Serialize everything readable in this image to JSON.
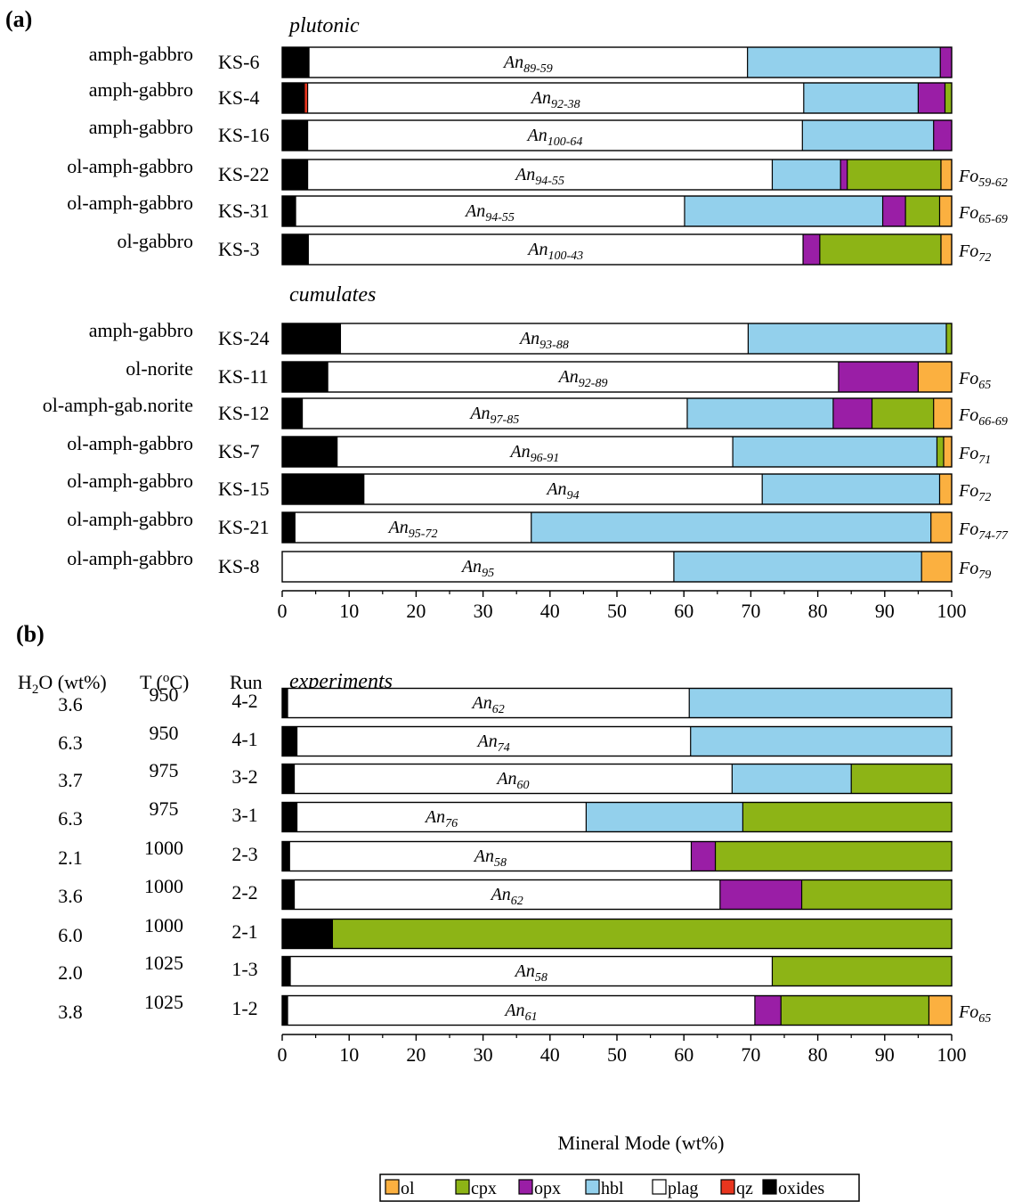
{
  "chart_data": [
    {
      "type": "bar",
      "stacked": true,
      "orientation": "horizontal",
      "panel": "(a)",
      "xlim": [
        0,
        100
      ],
      "xticks": [
        0,
        10,
        20,
        30,
        40,
        50,
        60,
        70,
        80,
        90,
        100
      ],
      "component_order": [
        "oxides",
        "qz",
        "plag",
        "hbl",
        "opx",
        "cpx",
        "ol"
      ],
      "groups": [
        {
          "label": "plutonic",
          "samples": [
            {
              "rock": "amph-gabbro",
              "sample": "KS-6",
              "an": "89-59",
              "fo": "",
              "values": {
                "oxides": 4,
                "qz": 0,
                "plag": 65.5,
                "hbl": 28.8,
                "opx": 1.7,
                "cpx": 0,
                "ol": 0
              }
            },
            {
              "rock": "amph-gabbro",
              "sample": "KS-4",
              "an": "92-38",
              "fo": "",
              "values": {
                "oxides": 3.3,
                "qz": 0.5,
                "plag": 74.1,
                "hbl": 17.1,
                "opx": 4,
                "cpx": 1,
                "ol": 0
              }
            },
            {
              "rock": "amph-gabbro",
              "sample": "KS-16",
              "an": "100-64",
              "fo": "",
              "values": {
                "oxides": 3.8,
                "qz": 0,
                "plag": 73.9,
                "hbl": 19.6,
                "opx": 2.7,
                "cpx": 0,
                "ol": 0
              }
            },
            {
              "rock": "ol-amph-gabbro",
              "sample": "KS-22",
              "an": "94-55",
              "fo": "59-62",
              "values": {
                "oxides": 3.8,
                "qz": 0,
                "plag": 69.4,
                "hbl": 10.2,
                "opx": 1,
                "cpx": 14,
                "ol": 1.6
              }
            },
            {
              "rock": "ol-amph-gabbro",
              "sample": "KS-31",
              "an": "94-55",
              "fo": "65-69",
              "values": {
                "oxides": 2,
                "qz": 0,
                "plag": 58.1,
                "hbl": 29.6,
                "opx": 3.4,
                "cpx": 5.1,
                "ol": 1.8
              }
            },
            {
              "rock": "ol-gabbro",
              "sample": "KS-3",
              "an": "100-43",
              "fo": "72",
              "values": {
                "oxides": 3.9,
                "qz": 0,
                "plag": 73.9,
                "hbl": 0,
                "opx": 2.5,
                "cpx": 18.1,
                "ol": 1.6
              }
            }
          ]
        },
        {
          "label": "cumulates",
          "samples": [
            {
              "rock": "amph-gabbro",
              "sample": "KS-24",
              "an": "93-88",
              "fo": "",
              "values": {
                "oxides": 8.7,
                "qz": 0,
                "plag": 60.9,
                "hbl": 29.6,
                "opx": 0,
                "cpx": 0.8,
                "ol": 0
              }
            },
            {
              "rock": "ol-norite",
              "sample": "KS-11",
              "an": "92-89",
              "fo": "65",
              "values": {
                "oxides": 6.8,
                "qz": 0,
                "plag": 76.3,
                "hbl": 0,
                "opx": 11.9,
                "cpx": 0,
                "ol": 5
              }
            },
            {
              "rock": "ol-amph-gab.norite",
              "sample": "KS-12",
              "an": "97-85",
              "fo": "66-69",
              "values": {
                "oxides": 3,
                "qz": 0,
                "plag": 57.5,
                "hbl": 21.8,
                "opx": 5.8,
                "cpx": 9.2,
                "ol": 2.7
              }
            },
            {
              "rock": "ol-amph-gabbro",
              "sample": "KS-7",
              "an": "96-91",
              "fo": "71",
              "values": {
                "oxides": 8.2,
                "qz": 0,
                "plag": 59.1,
                "hbl": 30.5,
                "opx": 0,
                "cpx": 1,
                "ol": 1.2
              }
            },
            {
              "rock": "ol-amph-gabbro",
              "sample": "KS-15",
              "an": "94",
              "fo": "72",
              "values": {
                "oxides": 12.2,
                "qz": 0,
                "plag": 59.5,
                "hbl": 26.5,
                "opx": 0,
                "cpx": 0,
                "ol": 1.8
              }
            },
            {
              "rock": "ol-amph-gabbro",
              "sample": "KS-21",
              "an": "95-72",
              "fo": "74-77",
              "values": {
                "oxides": 1.9,
                "qz": 0,
                "plag": 35.3,
                "hbl": 59.7,
                "opx": 0,
                "cpx": 0,
                "ol": 3.1
              }
            },
            {
              "rock": "ol-amph-gabbro",
              "sample": "KS-8",
              "an": "95",
              "fo": "79",
              "values": {
                "oxides": 0,
                "qz": 0,
                "plag": 58.5,
                "hbl": 37,
                "opx": 0,
                "cpx": 0,
                "ol": 4.5
              }
            }
          ]
        }
      ]
    },
    {
      "type": "bar",
      "stacked": true,
      "orientation": "horizontal",
      "panel": "(b)",
      "group_label": "experiments",
      "column_headers": {
        "h2o": "H₂O (wt%)",
        "t": "T (°C)",
        "run": "Run"
      },
      "xlabel": "Mineral Mode (wt%)",
      "xlim": [
        0,
        100
      ],
      "xticks": [
        0,
        10,
        20,
        30,
        40,
        50,
        60,
        70,
        80,
        90,
        100
      ],
      "component_order": [
        "oxides",
        "plag",
        "hbl",
        "opx",
        "cpx",
        "ol"
      ],
      "runs": [
        {
          "h2o": "3.6",
          "t": "950",
          "run": "4-2",
          "an": "62",
          "fo": "",
          "values": {
            "oxides": 0.8,
            "plag": 60,
            "hbl": 39.2,
            "opx": 0,
            "cpx": 0,
            "ol": 0
          }
        },
        {
          "h2o": "6.3",
          "t": "950",
          "run": "4-1",
          "an": "74",
          "fo": "",
          "values": {
            "oxides": 2.2,
            "plag": 58.8,
            "hbl": 39,
            "opx": 0,
            "cpx": 0,
            "ol": 0
          }
        },
        {
          "h2o": "3.7",
          "t": "975",
          "run": "3-2",
          "an": "60",
          "fo": "",
          "values": {
            "oxides": 1.8,
            "plag": 65.4,
            "hbl": 17.8,
            "opx": 0,
            "cpx": 15,
            "ol": 0
          }
        },
        {
          "h2o": "6.3",
          "t": "975",
          "run": "3-1",
          "an": "76",
          "fo": "",
          "values": {
            "oxides": 2.2,
            "plag": 43.2,
            "hbl": 23.4,
            "opx": 0,
            "cpx": 31.2,
            "ol": 0
          }
        },
        {
          "h2o": "2.1",
          "t": "1000",
          "run": "2-3",
          "an": "58",
          "fo": "",
          "values": {
            "oxides": 1.1,
            "plag": 60,
            "hbl": 0,
            "opx": 3.6,
            "cpx": 35.3,
            "ol": 0
          }
        },
        {
          "h2o": "3.6",
          "t": "1000",
          "run": "2-2",
          "an": "62",
          "fo": "",
          "values": {
            "oxides": 1.8,
            "plag": 63.6,
            "hbl": 0,
            "opx": 12.2,
            "cpx": 22.4,
            "ol": 0
          }
        },
        {
          "h2o": "6.0",
          "t": "1000",
          "run": "2-1",
          "an": "",
          "fo": "",
          "values": {
            "oxides": 7.5,
            "plag": 0,
            "hbl": 0,
            "opx": 0,
            "cpx": 92.5,
            "ol": 0
          }
        },
        {
          "h2o": "2.0",
          "t": "1025",
          "run": "1-3",
          "an": "58",
          "fo": "",
          "values": {
            "oxides": 1.2,
            "plag": 72,
            "hbl": 0,
            "opx": 0,
            "cpx": 26.8,
            "ol": 0
          }
        },
        {
          "h2o": "3.8",
          "t": "1025",
          "run": "1-2",
          "an": "61",
          "fo": "65",
          "values": {
            "oxides": 0.8,
            "plag": 69.8,
            "hbl": 0,
            "opx": 3.9,
            "cpx": 22.1,
            "ol": 3.4
          }
        }
      ]
    }
  ],
  "legend": {
    "placement": "bottom",
    "items": [
      {
        "key": "ol",
        "label": "ol",
        "color": "#fbb040"
      },
      {
        "key": "cpx",
        "label": "cpx",
        "color": "#8db416"
      },
      {
        "key": "opx",
        "label": "opx",
        "color": "#9a1ea6"
      },
      {
        "key": "hbl",
        "label": "hbl",
        "color": "#93d0ec"
      },
      {
        "key": "plag",
        "label": "plag",
        "color": "#ffffff"
      },
      {
        "key": "qz",
        "label": "qz",
        "color": "#e8351e"
      },
      {
        "key": "oxides",
        "label": "oxides",
        "color": "#000000"
      }
    ]
  },
  "an_prefix": "An",
  "fo_prefix": "Fo"
}
